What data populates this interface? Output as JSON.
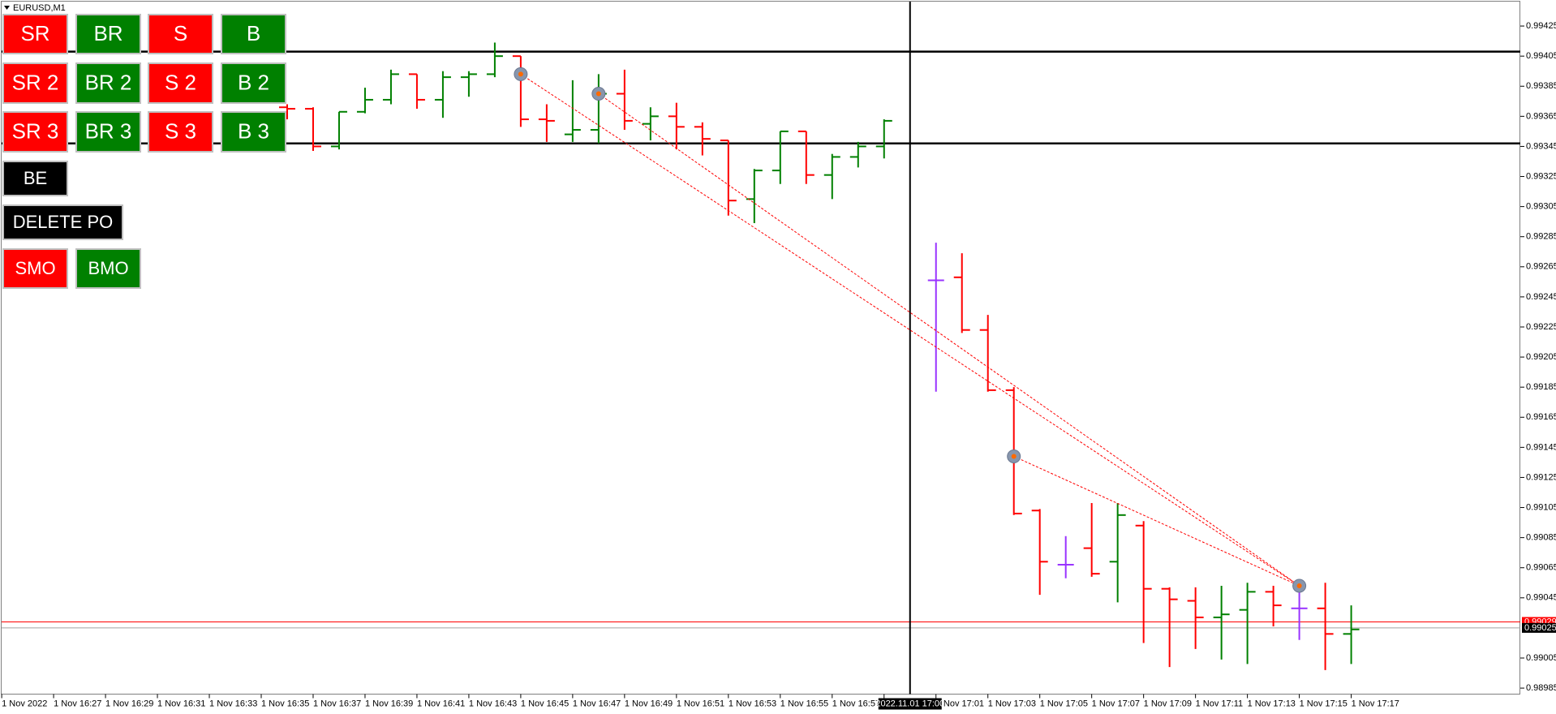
{
  "window": {
    "title": "EURUSD,M1"
  },
  "button_rows": [
    [
      {
        "label": "SR",
        "color": "#ff0000"
      },
      {
        "label": "BR",
        "color": "#008000"
      },
      {
        "label": "S",
        "color": "#ff0000"
      },
      {
        "label": "B",
        "color": "#008000"
      }
    ],
    [
      {
        "label": "SR 2",
        "color": "#ff0000"
      },
      {
        "label": "BR 2",
        "color": "#008000"
      },
      {
        "label": "S 2",
        "color": "#ff0000"
      },
      {
        "label": "B 2",
        "color": "#008000"
      }
    ],
    [
      {
        "label": "SR 3",
        "color": "#ff0000"
      },
      {
        "label": "BR 3",
        "color": "#008000"
      },
      {
        "label": "S 3",
        "color": "#ff0000"
      },
      {
        "label": "B 3",
        "color": "#008000"
      }
    ],
    [
      {
        "label": "BE",
        "color": "#000000"
      }
    ],
    [
      {
        "label": "DELETE PO",
        "color": "#000000"
      }
    ],
    [
      {
        "label": "SMO",
        "color": "#ff0000"
      },
      {
        "label": "BMO",
        "color": "#008000"
      }
    ]
  ],
  "chart_data": {
    "type": "ohlc",
    "colors": {
      "up": "#008000",
      "down": "#ff0000",
      "flat": "#9933ff"
    },
    "x": [
      "1 Nov 16:36",
      "1 Nov 16:37",
      "1 Nov 16:38",
      "1 Nov 16:39",
      "1 Nov 16:40",
      "1 Nov 16:41",
      "1 Nov 16:42",
      "1 Nov 16:43",
      "1 Nov 16:44",
      "1 Nov 16:45",
      "1 Nov 16:46",
      "1 Nov 16:47",
      "1 Nov 16:48",
      "1 Nov 16:49",
      "1 Nov 16:50",
      "1 Nov 16:51",
      "1 Nov 16:52",
      "1 Nov 16:53",
      "1 Nov 16:54",
      "1 Nov 16:55",
      "1 Nov 16:56",
      "1 Nov 16:57",
      "1 Nov 16:58",
      "1 Nov 16:59",
      "1 Nov 17:01",
      "1 Nov 17:02",
      "1 Nov 17:03",
      "1 Nov 17:04",
      "1 Nov 17:05",
      "1 Nov 17:06",
      "1 Nov 17:07",
      "1 Nov 17:08",
      "1 Nov 17:09",
      "1 Nov 17:10",
      "1 Nov 17:11",
      "1 Nov 17:12",
      "1 Nov 17:13",
      "1 Nov 17:14",
      "1 Nov 17:15",
      "1 Nov 17:16",
      "1 Nov 17:17"
    ],
    "open": [
      0.99371,
      0.9937,
      0.99345,
      0.99368,
      0.99376,
      0.99393,
      0.99376,
      0.99391,
      0.99393,
      0.99405,
      0.99363,
      0.99353,
      0.99356,
      0.9938,
      0.9936,
      0.99365,
      0.99358,
      0.99349,
      0.9931,
      0.99329,
      0.99355,
      0.99326,
      0.99338,
      0.99345,
      0.99256,
      0.99258,
      0.99223,
      0.99183,
      0.99103,
      0.99067,
      0.99078,
      0.99069,
      0.99093,
      0.99051,
      0.99043,
      0.99032,
      0.99037,
      0.99049,
      0.99038,
      0.99038,
      0.99021
    ],
    "high": [
      0.99373,
      0.99371,
      0.99368,
      0.99384,
      0.99396,
      0.99393,
      0.99395,
      0.99395,
      0.99414,
      0.99405,
      0.99373,
      0.99389,
      0.99393,
      0.99396,
      0.99371,
      0.99374,
      0.99361,
      0.99349,
      0.9933,
      0.99355,
      0.99355,
      0.9934,
      0.99348,
      0.99363,
      0.99281,
      0.99274,
      0.99233,
      0.99185,
      0.99104,
      0.99086,
      0.99108,
      0.99108,
      0.99096,
      0.99052,
      0.99052,
      0.99053,
      0.99055,
      0.99053,
      0.9905,
      0.99055,
      0.9904
    ],
    "low": [
      0.99363,
      0.99342,
      0.99343,
      0.99367,
      0.99373,
      0.9937,
      0.99364,
      0.99378,
      0.99391,
      0.99358,
      0.99348,
      0.99348,
      0.99347,
      0.99356,
      0.99349,
      0.99343,
      0.99339,
      0.99299,
      0.99294,
      0.9932,
      0.9932,
      0.9931,
      0.99331,
      0.99337,
      0.99182,
      0.99221,
      0.99182,
      0.991,
      0.99047,
      0.99058,
      0.99059,
      0.99042,
      0.99015,
      0.98999,
      0.99011,
      0.99004,
      0.99001,
      0.99026,
      0.99017,
      0.98997,
      0.99001
    ],
    "close": [
      0.9937,
      0.99345,
      0.99368,
      0.99376,
      0.99393,
      0.99376,
      0.99391,
      0.99393,
      0.99405,
      0.99363,
      0.99362,
      0.99356,
      0.9938,
      0.99362,
      0.99365,
      0.99358,
      0.9935,
      0.99309,
      0.99329,
      0.99355,
      0.99326,
      0.99338,
      0.99345,
      0.99362,
      0.99256,
      0.99223,
      0.99183,
      0.99101,
      0.99069,
      0.99067,
      0.99061,
      0.991,
      0.99051,
      0.99044,
      0.99032,
      0.99034,
      0.99049,
      0.9904,
      0.99038,
      0.99021,
      0.99024
    ],
    "ylim": [
      0.98981,
      0.99441
    ],
    "yticks": [
      0.99425,
      0.99405,
      0.99385,
      0.99365,
      0.99345,
      0.99325,
      0.99305,
      0.99285,
      0.99265,
      0.99245,
      0.99225,
      0.99205,
      0.99185,
      0.99165,
      0.99145,
      0.99125,
      0.99105,
      0.99085,
      0.99065,
      0.99045,
      0.99005,
      0.98985
    ],
    "xticks": [
      "1 Nov 2022",
      "1 Nov 16:27",
      "1 Nov 16:29",
      "1 Nov 16:31",
      "1 Nov 16:33",
      "1 Nov 16:35",
      "1 Nov 16:37",
      "1 Nov 16:39",
      "1 Nov 16:41",
      "1 Nov 16:43",
      "1 Nov 16:45",
      "1 Nov 16:47",
      "1 Nov 16:49",
      "1 Nov 16:51",
      "1 Nov 16:53",
      "1 Nov 16:55",
      "1 Nov 16:57",
      "1 Nov 16:59",
      "1 Nov 17:01",
      "1 Nov 17:03",
      "1 Nov 17:05",
      "1 Nov 17:07",
      "1 Nov 17:09",
      "1 Nov 17:11",
      "1 Nov 17:13",
      "1 Nov 17:15",
      "1 Nov 17:17"
    ],
    "hlines": [
      {
        "value": 0.99408,
        "color": "#000000"
      },
      {
        "value": 0.99347,
        "color": "#000000"
      },
      {
        "value": 0.99029,
        "color": "#ff0000"
      },
      {
        "value": 0.99025,
        "color": "#a0a0a0"
      }
    ],
    "trades": [
      {
        "x": "1 Nov 16:45",
        "price": 0.99393
      },
      {
        "x": "1 Nov 16:48",
        "price": 0.9938
      },
      {
        "x": "1 Nov 17:04",
        "price": 0.99139
      },
      {
        "x": "1 Nov 17:15",
        "price": 0.99053
      }
    ],
    "crosshair": {
      "x": "1 Nov 17:00",
      "label": "2022.11.01 17:00"
    }
  }
}
